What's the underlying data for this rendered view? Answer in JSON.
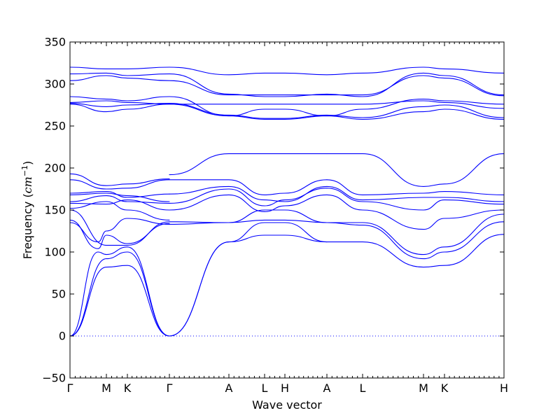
{
  "chart_data": {
    "type": "line",
    "title": "",
    "xlabel": "Wave vector",
    "ylabel_text": "Frequency (",
    "ylabel_unit_base": "cm",
    "ylabel_unit_exp": "−1",
    "ylabel_close": ")",
    "ylim": [
      -50,
      350
    ],
    "yticks": [
      "−50",
      "0",
      "50",
      "100",
      "150",
      "200",
      "250",
      "300",
      "350"
    ],
    "ytick_values": [
      -50,
      0,
      50,
      100,
      150,
      200,
      250,
      300,
      350
    ],
    "high_symmetry_points": [
      {
        "label": "Γ",
        "x": 0
      },
      {
        "label": "M",
        "x": 0.52
      },
      {
        "label": "K",
        "x": 0.82
      },
      {
        "label": "Γ",
        "x": 1.42
      },
      {
        "label": "A",
        "x": 2.27
      },
      {
        "label": "L",
        "x": 2.78
      },
      {
        "label": "H",
        "x": 3.07
      },
      {
        "label": "A",
        "x": 3.67
      },
      {
        "label": "L",
        "x": 4.18
      },
      {
        "label": "M",
        "x": 5.05
      },
      {
        "label": "K",
        "x": 5.35
      },
      {
        "label": "H",
        "x": 6.2
      }
    ],
    "zero_line": {
      "y": 0,
      "style": "dotted"
    },
    "grid": false,
    "line_color": "#0000ff",
    "bands": [
      {
        "x": [
          0,
          0.52,
          0.82,
          1.42
        ],
        "y": [
          0,
          82,
          84,
          0
        ]
      },
      {
        "x": [
          0,
          0.52,
          0.82,
          1.42
        ],
        "y": [
          0,
          92,
          100,
          0
        ]
      },
      {
        "x": [
          0,
          0.4,
          0.52,
          0.82,
          1.42
        ],
        "y": [
          0,
          100,
          97,
          106,
          0
        ]
      },
      {
        "x": [
          0,
          0.4,
          0.52,
          0.82,
          1.42
        ],
        "y": [
          138,
          104,
          120,
          110,
          134
        ]
      },
      {
        "x": [
          0,
          0.4,
          0.52,
          0.82,
          1.42
        ],
        "y": [
          135,
          112,
          125,
          140,
          133
        ]
      },
      {
        "x": [
          0,
          0.52,
          0.82,
          1.42
        ],
        "y": [
          150,
          108,
          108,
          136
        ]
      },
      {
        "x": [
          0,
          0.52,
          0.82,
          1.42
        ],
        "y": [
          152,
          160,
          150,
          138
        ]
      },
      {
        "x": [
          0,
          0.52,
          0.82,
          1.42
        ],
        "y": [
          158,
          157,
          162,
          150
        ]
      },
      {
        "x": [
          0,
          0.52,
          0.82,
          1.42
        ],
        "y": [
          160,
          167,
          160,
          158
        ]
      },
      {
        "x": [
          0,
          0.52,
          0.82,
          1.42
        ],
        "y": [
          168,
          170,
          167,
          160
        ]
      },
      {
        "x": [
          0,
          0.52,
          0.82,
          1.42
        ],
        "y": [
          170,
          172,
          165,
          169
        ]
      },
      {
        "x": [
          0,
          0.52,
          0.82,
          1.42
        ],
        "y": [
          186,
          175,
          176,
          186
        ]
      },
      {
        "x": [
          0,
          0.52,
          0.82,
          1.42
        ],
        "y": [
          193,
          179,
          181,
          187
        ]
      },
      {
        "x": [
          1.42,
          2.27,
          2.78,
          3.07,
          3.67
        ],
        "y": [
          0,
          112,
          120,
          120,
          112
        ]
      },
      {
        "x": [
          1.42,
          2.27,
          2.78,
          3.07,
          3.67
        ],
        "y": [
          0,
          112,
          135,
          135,
          112
        ]
      },
      {
        "x": [
          1.42,
          2.27,
          2.78,
          3.07,
          3.67
        ],
        "y": [
          133,
          135,
          138,
          138,
          135
        ]
      },
      {
        "x": [
          1.42,
          2.27,
          2.78,
          3.07,
          3.67
        ],
        "y": [
          136,
          135,
          150,
          150,
          135
        ]
      },
      {
        "x": [
          1.42,
          2.27,
          2.78,
          3.07,
          3.67
        ],
        "y": [
          150,
          168,
          148,
          155,
          168
        ]
      },
      {
        "x": [
          1.42,
          2.27,
          2.78,
          3.07,
          3.67
        ],
        "y": [
          158,
          175,
          155,
          162,
          176
        ]
      },
      {
        "x": [
          1.42,
          2.27,
          2.78,
          3.07,
          3.67
        ],
        "y": [
          169,
          178,
          162,
          160,
          178
        ]
      },
      {
        "x": [
          1.42,
          2.27,
          2.78,
          3.07,
          3.67
        ],
        "y": [
          186,
          186,
          168,
          170,
          186
        ]
      },
      {
        "x": [
          1.42,
          2.27,
          2.78,
          3.07,
          3.67
        ],
        "y": [
          192,
          217,
          217,
          217,
          217
        ]
      },
      {
        "x": [
          3.67,
          4.18,
          5.05,
          5.35,
          6.2
        ],
        "y": [
          112,
          112,
          82,
          84,
          121
        ]
      },
      {
        "x": [
          3.67,
          4.18,
          5.05,
          5.35,
          6.2
        ],
        "y": [
          135,
          132,
          92,
          100,
          136
        ]
      },
      {
        "x": [
          3.67,
          4.18,
          5.05,
          5.35,
          6.2
        ],
        "y": [
          135,
          135,
          97,
          106,
          145
        ]
      },
      {
        "x": [
          3.67,
          4.18,
          5.05,
          5.35,
          6.2
        ],
        "y": [
          168,
          150,
          127,
          140,
          150
        ]
      },
      {
        "x": [
          3.67,
          4.18,
          5.05,
          5.35,
          6.2
        ],
        "y": [
          176,
          160,
          150,
          162,
          157
        ]
      },
      {
        "x": [
          3.67,
          4.18,
          5.05,
          5.35,
          6.2
        ],
        "y": [
          178,
          162,
          165,
          165,
          160
        ]
      },
      {
        "x": [
          3.67,
          4.18,
          5.05,
          5.35,
          6.2
        ],
        "y": [
          186,
          168,
          170,
          172,
          168
        ]
      },
      {
        "x": [
          3.67,
          4.18,
          5.05,
          5.35,
          6.2
        ],
        "y": [
          217,
          217,
          178,
          181,
          217
        ]
      },
      {
        "x": [
          0,
          0.52,
          0.82,
          1.42,
          2.27,
          2.78,
          3.07,
          3.67,
          4.18,
          5.05,
          5.35,
          6.2
        ],
        "y": [
          276,
          267,
          270,
          276,
          262,
          258,
          258,
          262,
          258,
          267,
          270,
          258
        ]
      },
      {
        "x": [
          0,
          0.52,
          0.82,
          1.42,
          2.27,
          2.78,
          3.07,
          3.67,
          4.18,
          5.05,
          5.35,
          6.2
        ],
        "y": [
          277,
          273,
          275,
          277,
          263,
          259,
          259,
          263,
          260,
          273,
          275,
          260
        ]
      },
      {
        "x": [
          0,
          0.52,
          0.82,
          1.42,
          2.27,
          2.78,
          3.07,
          3.67,
          4.18,
          5.05,
          5.35,
          6.2
        ],
        "y": [
          278,
          280,
          278,
          276,
          276,
          276,
          276,
          276,
          276,
          280,
          278,
          271
        ]
      },
      {
        "x": [
          0,
          0.52,
          0.82,
          1.42,
          2.27,
          2.78,
          3.07,
          3.67,
          4.18,
          5.05,
          5.35,
          6.2
        ],
        "y": [
          285,
          282,
          280,
          285,
          262,
          270,
          270,
          262,
          270,
          282,
          280,
          276
        ]
      },
      {
        "x": [
          0,
          0.52,
          0.82,
          1.42,
          2.27,
          2.78,
          3.07,
          3.67,
          4.18,
          5.05,
          5.35,
          6.2
        ],
        "y": [
          304,
          310,
          307,
          304,
          287,
          287,
          287,
          287,
          287,
          310,
          307,
          286
        ]
      },
      {
        "x": [
          0,
          0.52,
          0.82,
          1.42,
          2.27,
          2.78,
          3.07,
          3.67,
          4.18,
          5.05,
          5.35,
          6.2
        ],
        "y": [
          312,
          313,
          310,
          312,
          288,
          285,
          285,
          288,
          285,
          313,
          310,
          287
        ]
      },
      {
        "x": [
          0,
          0.52,
          0.82,
          1.42,
          2.27,
          2.78,
          3.07,
          3.67,
          4.18,
          5.05,
          5.35,
          6.2
        ],
        "y": [
          320,
          318,
          318,
          320,
          311,
          313,
          313,
          311,
          313,
          320,
          318,
          313
        ]
      }
    ]
  }
}
